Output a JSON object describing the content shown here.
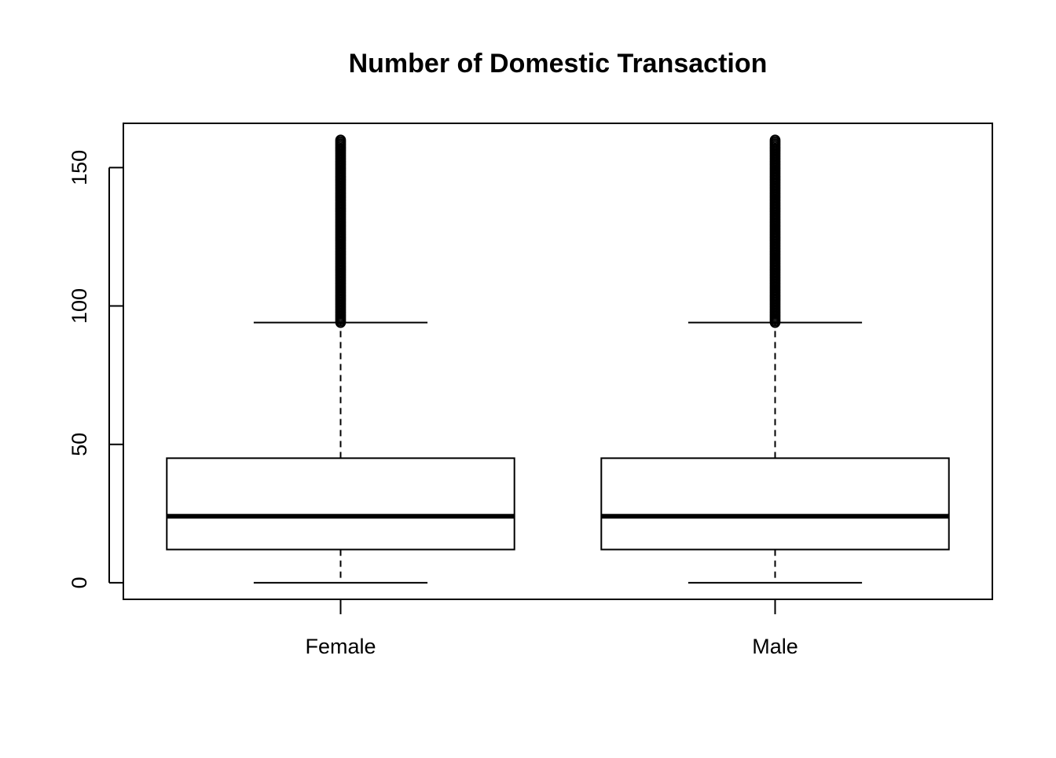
{
  "chart_data": {
    "type": "boxplot",
    "title": "Number of Domestic Transaction",
    "xlabel": "",
    "ylabel": "",
    "ylim": [
      -6,
      166
    ],
    "yticks": [
      0,
      50,
      100,
      150
    ],
    "ytick_labels": [
      "0",
      "50",
      "100",
      "150"
    ],
    "categories": [
      "Female",
      "Male"
    ],
    "boxes": [
      {
        "category": "Female",
        "min": 0,
        "q1": 12,
        "median": 24,
        "q3": 45,
        "max": 94,
        "outlier_range": [
          94,
          160
        ]
      },
      {
        "category": "Male",
        "min": 0,
        "q1": 12,
        "median": 24,
        "q3": 45,
        "max": 94,
        "outlier_range": [
          94,
          160
        ]
      }
    ],
    "grid": false,
    "legend": "none",
    "colors": {
      "line": "#000000",
      "box_fill": "#ffffff",
      "background": "#ffffff"
    }
  }
}
